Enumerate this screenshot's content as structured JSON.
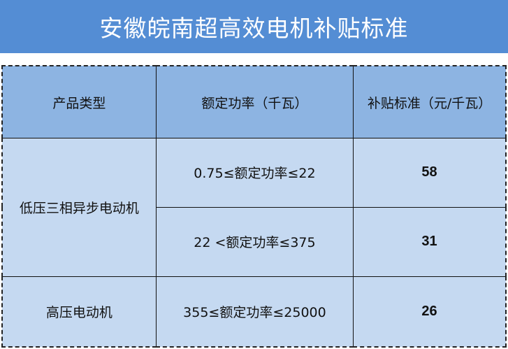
{
  "title": "安徽皖南超高效电机补贴标准",
  "colors": {
    "title_bg": "#548dd4",
    "header_bg": "#8db4e2",
    "body_bg": "#c5d9f1"
  },
  "table": {
    "headers": [
      "产品类型",
      "额定功率（千瓦）",
      "补贴标准（元/千瓦）"
    ],
    "rows": [
      {
        "type": "低压三相异步电动机",
        "power": "0.75≤额定功率≤22",
        "subsidy": "58"
      },
      {
        "type": "低压三相异步电动机",
        "power": "22 <额定功率≤375",
        "subsidy": "31"
      },
      {
        "type": "高压电动机",
        "power": "355≤额定功率≤25000",
        "subsidy": "26"
      }
    ]
  }
}
